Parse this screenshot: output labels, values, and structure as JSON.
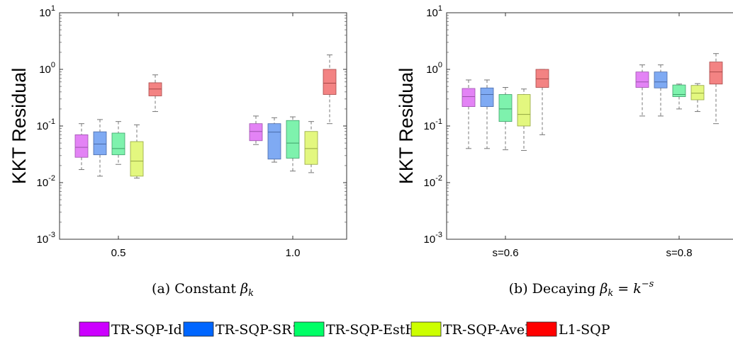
{
  "chart_data": [
    {
      "type": "box",
      "panel": "a",
      "ylabel": "KKT Residual",
      "yscale": "log",
      "ylim": [
        0.001,
        10
      ],
      "yticks": [
        "10^1",
        "10^0",
        "10^-1",
        "10^-2",
        "10^-3"
      ],
      "categories": [
        "0.5",
        "1.0"
      ],
      "caption": {
        "prefix": "(a) Constant ",
        "math": "β",
        "sub": "k"
      },
      "series": [
        {
          "name": "TR-SQP-Id",
          "boxes": [
            {
              "whislo": 0.017,
              "q1": 0.028,
              "med": 0.042,
              "q3": 0.07,
              "whishi": 0.11
            },
            {
              "whislo": 0.047,
              "q1": 0.055,
              "med": 0.08,
              "q3": 0.11,
              "whishi": 0.15
            }
          ]
        },
        {
          "name": "TR-SQP-SR1",
          "boxes": [
            {
              "whislo": 0.013,
              "q1": 0.031,
              "med": 0.048,
              "q3": 0.079,
              "whishi": 0.13
            },
            {
              "whislo": 0.023,
              "q1": 0.026,
              "med": 0.078,
              "q3": 0.11,
              "whishi": 0.14
            }
          ]
        },
        {
          "name": "TR-SQP-EstH",
          "boxes": [
            {
              "whislo": 0.021,
              "q1": 0.031,
              "med": 0.04,
              "q3": 0.075,
              "whishi": 0.12
            },
            {
              "whislo": 0.016,
              "q1": 0.027,
              "med": 0.05,
              "q3": 0.125,
              "whishi": 0.145
            }
          ]
        },
        {
          "name": "TR-SQP-AveH",
          "boxes": [
            {
              "whislo": 0.012,
              "q1": 0.013,
              "med": 0.024,
              "q3": 0.053,
              "whishi": 0.105
            },
            {
              "whislo": 0.015,
              "q1": 0.021,
              "med": 0.04,
              "q3": 0.08,
              "whishi": 0.12
            }
          ]
        },
        {
          "name": "L1-SQP",
          "boxes": [
            {
              "whislo": 0.18,
              "q1": 0.34,
              "med": 0.45,
              "q3": 0.58,
              "whishi": 0.8
            },
            {
              "whislo": 0.11,
              "q1": 0.36,
              "med": 0.57,
              "q3": 1.0,
              "whishi": 1.8
            }
          ]
        }
      ]
    },
    {
      "type": "box",
      "panel": "b",
      "ylabel": "KKT Residual",
      "yscale": "log",
      "ylim": [
        0.001,
        10
      ],
      "yticks": [
        "10^1",
        "10^0",
        "10^-1",
        "10^-2",
        "10^-3"
      ],
      "categories": [
        "s=0.6",
        "s=0.8"
      ],
      "caption": {
        "prefix": "(b) Decaying ",
        "math": "β",
        "sub": "k",
        "eq": " = ",
        "base": "k",
        "sup": "−s"
      },
      "series": [
        {
          "name": "TR-SQP-Id",
          "boxes": [
            {
              "whislo": 0.04,
              "q1": 0.22,
              "med": 0.33,
              "q3": 0.46,
              "whishi": 0.65
            },
            {
              "whislo": 0.15,
              "q1": 0.48,
              "med": 0.6,
              "q3": 0.9,
              "whishi": 1.2
            }
          ]
        },
        {
          "name": "TR-SQP-SR1",
          "boxes": [
            {
              "whislo": 0.04,
              "q1": 0.22,
              "med": 0.36,
              "q3": 0.47,
              "whishi": 0.65
            },
            {
              "whislo": 0.15,
              "q1": 0.47,
              "med": 0.6,
              "q3": 0.9,
              "whishi": 1.2
            }
          ]
        },
        {
          "name": "TR-SQP-EstH",
          "boxes": [
            {
              "whislo": 0.038,
              "q1": 0.12,
              "med": 0.2,
              "q3": 0.36,
              "whishi": 0.48
            },
            {
              "whislo": 0.2,
              "q1": 0.33,
              "med": 0.36,
              "q3": 0.53,
              "whishi": 0.55
            }
          ]
        },
        {
          "name": "TR-SQP-AveH",
          "boxes": [
            {
              "whislo": 0.037,
              "q1": 0.1,
              "med": 0.16,
              "q3": 0.36,
              "whishi": 0.45
            },
            {
              "whislo": 0.18,
              "q1": 0.29,
              "med": 0.38,
              "q3": 0.52,
              "whishi": 0.56
            }
          ]
        },
        {
          "name": "L1-SQP",
          "boxes": [
            {
              "whislo": 0.07,
              "q1": 0.48,
              "med": 0.68,
              "q3": 1.0,
              "whishi": 1.0
            },
            {
              "whislo": 0.11,
              "q1": 0.55,
              "med": 0.9,
              "q3": 1.35,
              "whishi": 1.9
            }
          ]
        }
      ]
    }
  ],
  "legend": [
    {
      "label": "TR-SQP-Id",
      "color": "#cc00ff"
    },
    {
      "label": "TR-SQP-SR1",
      "color": "#0066ff"
    },
    {
      "label": "TR-SQP-EstH",
      "color": "#00ff66"
    },
    {
      "label": "TR-SQP-AveH",
      "color": "#ccff00"
    },
    {
      "label": "L1-SQP",
      "color": "#ff0000"
    }
  ],
  "box_colors": {
    "TR-SQP-Id": {
      "fill": "#e383f5",
      "edge": "#9d52ad"
    },
    "TR-SQP-SR1": {
      "fill": "#7faaf3",
      "edge": "#4a6aa8"
    },
    "TR-SQP-EstH": {
      "fill": "#7ef2ad",
      "edge": "#3ea06a"
    },
    "TR-SQP-AveH": {
      "fill": "#e3f77f",
      "edge": "#93a640"
    },
    "L1-SQP": {
      "fill": "#f38383",
      "edge": "#a84848"
    }
  }
}
